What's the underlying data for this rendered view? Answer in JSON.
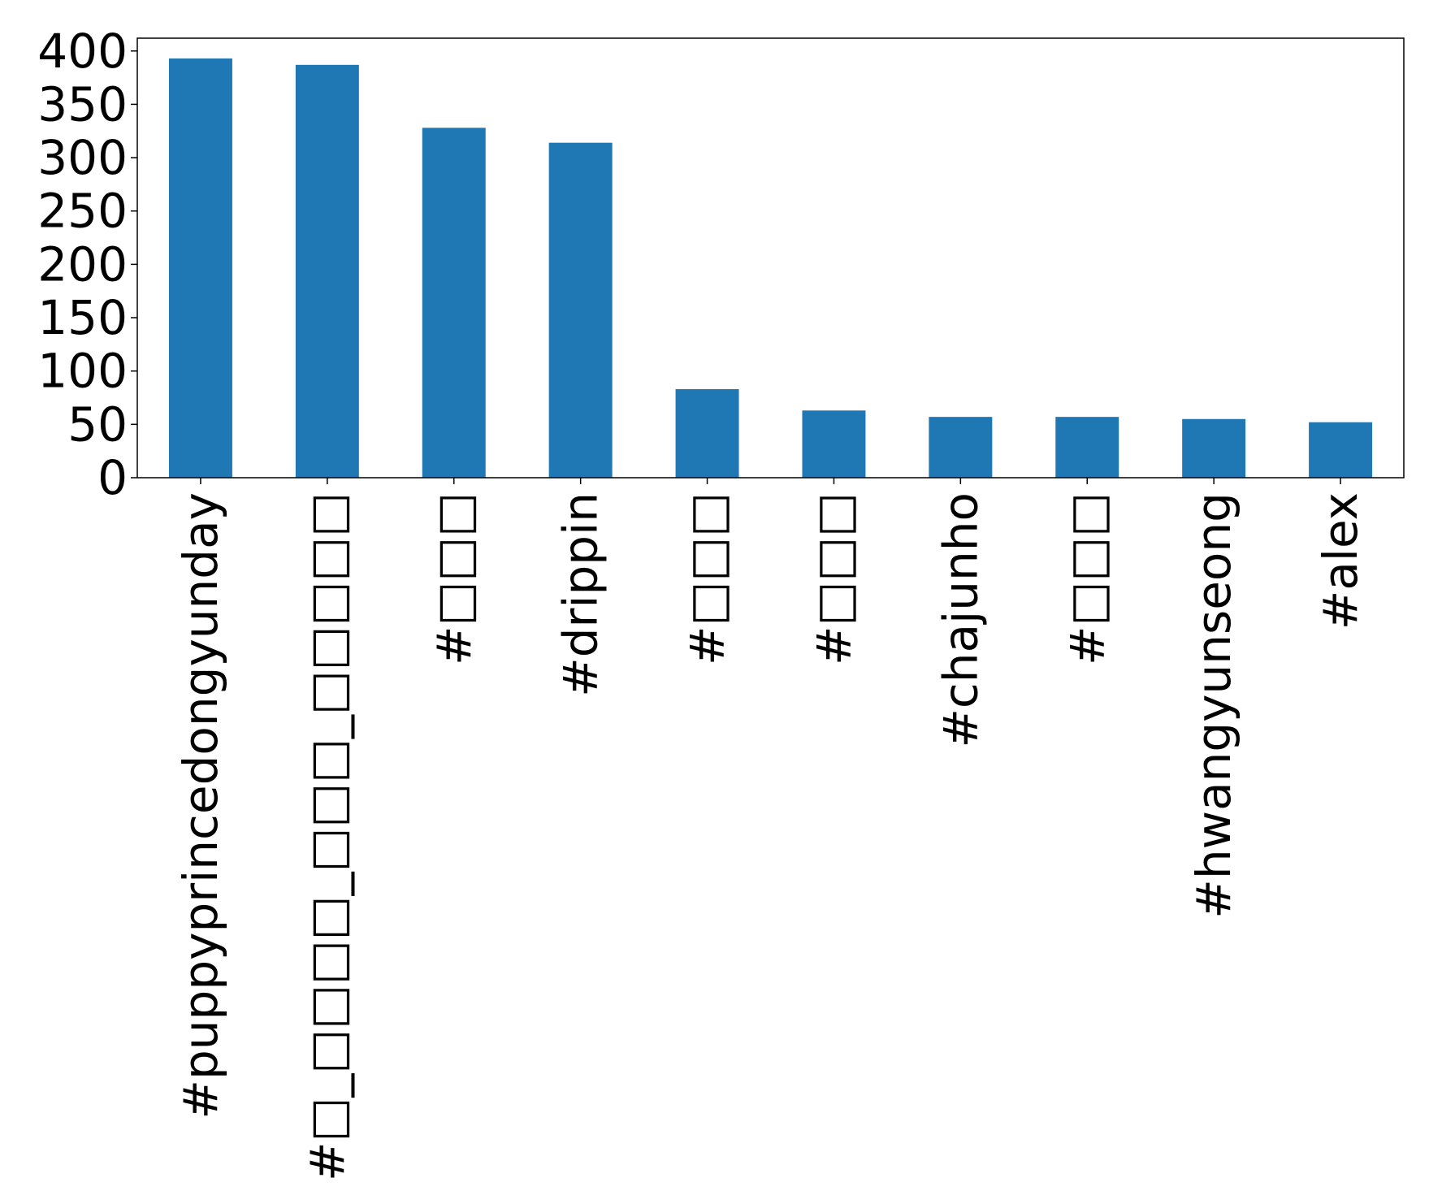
{
  "chart_data": {
    "type": "bar",
    "title": "",
    "xlabel": "",
    "ylabel": "",
    "categories": [
      "#puppyprincedongyunday",
      "#□_□□□□_□□□_□□□□□",
      "#□□□",
      "#drippin",
      "#□□□",
      "#□□□",
      "#chajunho",
      "#□□□",
      "#hwangyunseong",
      "#alex"
    ],
    "values": [
      393,
      387,
      328,
      314,
      83,
      63,
      57,
      57,
      55,
      52
    ],
    "ylim": [
      0,
      412
    ],
    "yticks": [
      0,
      50,
      100,
      150,
      200,
      250,
      300,
      350,
      400
    ],
    "bar_color": "#1f77b4",
    "grid": false,
    "legend": "none"
  }
}
